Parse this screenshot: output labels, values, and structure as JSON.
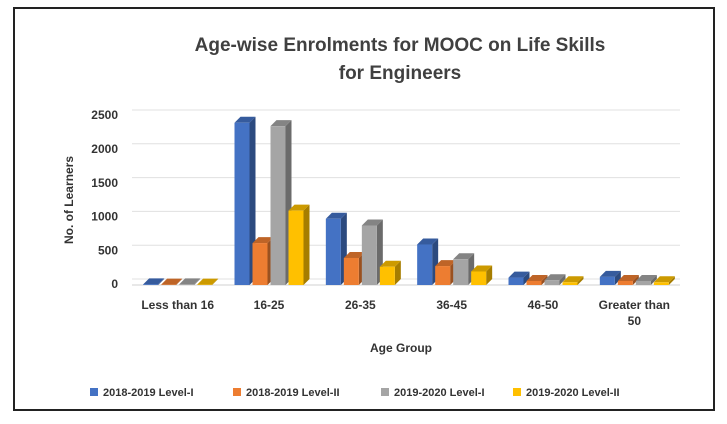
{
  "chart_data": {
    "type": "bar3d",
    "title": "Age-wise Enrolments for MOOC on Life Skills for Engineers",
    "x_label": "Age Group",
    "y_label": "No. of Learners",
    "categories": [
      "Less than 16",
      "16-25",
      "26-35",
      "36-45",
      "46-50",
      "Greater than 50"
    ],
    "series": [
      {
        "name": "2018-2019 Level-I",
        "color": "#4472c4",
        "values": [
          10,
          2400,
          980,
          600,
          110,
          120
        ]
      },
      {
        "name": "2018-2019 Level-II",
        "color": "#ed7d31",
        "values": [
          5,
          620,
          400,
          280,
          60,
          60
        ]
      },
      {
        "name": "2019-2020 Level-I",
        "color": "#a5a5a5",
        "values": [
          10,
          2350,
          880,
          380,
          70,
          60
        ]
      },
      {
        "name": "2019-2020 Level-II",
        "color": "#ffc000",
        "values": [
          5,
          1100,
          270,
          200,
          40,
          40
        ]
      }
    ],
    "ylim": [
      0,
      2500
    ],
    "yticks": [
      0,
      500,
      1000,
      1500,
      2000,
      2500
    ],
    "grid": true,
    "legend": "bottom"
  }
}
